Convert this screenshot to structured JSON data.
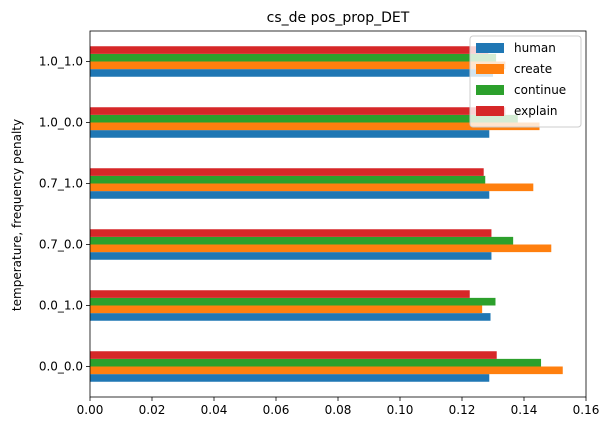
{
  "chart_data": {
    "type": "bar",
    "orientation": "horizontal",
    "title": "cs_de pos_prop_DET",
    "xlabel": "",
    "ylabel": "temperature, frequency penalty",
    "categories": [
      "0.0_0.0",
      "0.0_1.0",
      "0.7_0.0",
      "0.7_1.0",
      "1.0_0.0",
      "1.0_1.0"
    ],
    "xlim": [
      0,
      0.16
    ],
    "xticks": [
      "0.00",
      "0.02",
      "0.04",
      "0.06",
      "0.08",
      "0.10",
      "0.12",
      "0.14",
      "0.16"
    ],
    "grid": false,
    "legend_position": "top-right",
    "series": [
      {
        "name": "human",
        "color": "#1f77b4",
        "values": [
          0.1288,
          0.1292,
          0.1295,
          0.1288,
          0.1288,
          0.13
        ]
      },
      {
        "name": "create",
        "color": "#ff7f0e",
        "values": [
          0.1525,
          0.1265,
          0.1488,
          0.143,
          0.145,
          0.134
        ]
      },
      {
        "name": "continue",
        "color": "#2ca02c",
        "values": [
          0.1455,
          0.1308,
          0.1365,
          0.1275,
          0.138,
          0.131
        ]
      },
      {
        "name": "explain",
        "color": "#d62728",
        "values": [
          0.1312,
          0.1225,
          0.1295,
          0.127,
          0.134,
          0.1285
        ]
      }
    ]
  }
}
